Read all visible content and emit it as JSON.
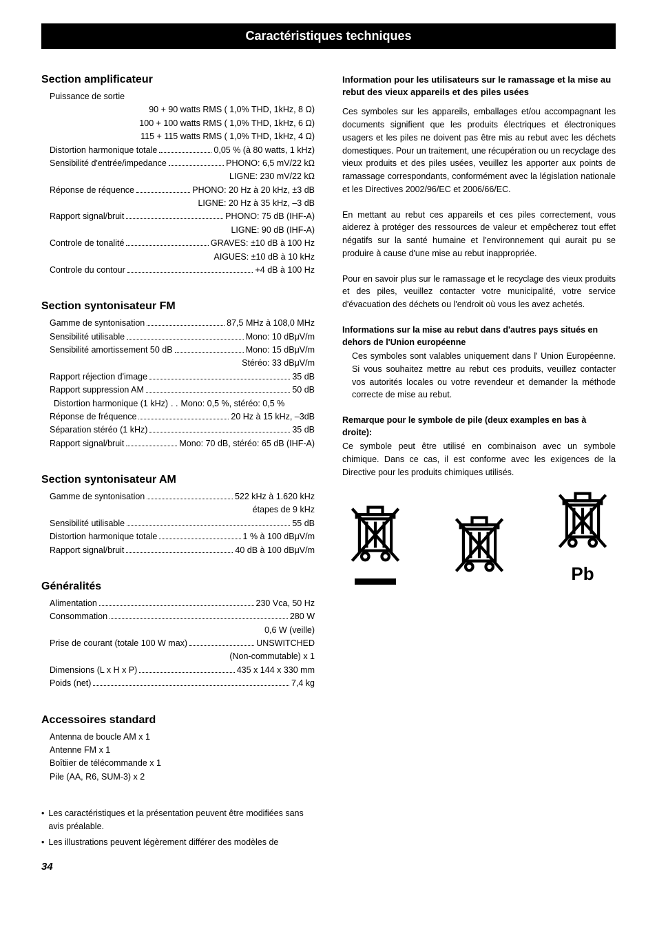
{
  "title": "Caractéristiques techniques",
  "page_number": "34",
  "colors": {
    "bg": "#ffffff",
    "bar": "#000000",
    "text": "#000000"
  },
  "sections": {
    "amp": {
      "head": "Section amplificateur",
      "rows": [
        {
          "label": "Puissance de sortie",
          "value": ""
        },
        {
          "right": "90 + 90 watts RMS ( 1,0% THD, 1kHz, 8 Ω)"
        },
        {
          "right": "100 + 100 watts RMS ( 1,0% THD, 1kHz, 6 Ω)"
        },
        {
          "right": "115 + 115 watts RMS ( 1,0% THD, 1kHz, 4 Ω)"
        },
        {
          "label": "Distortion harmonique totale",
          "value": "0,05 % (à 80 watts, 1 kHz)"
        },
        {
          "label": "Sensibilité d'entrée/impedance",
          "value": "PHONO: 6,5 mV/22 kΩ"
        },
        {
          "right": "LIGNE: 230 mV/22 kΩ"
        },
        {
          "label": "Réponse de réquence",
          "value": "PHONO: 20 Hz à 20 kHz, ±3 dB"
        },
        {
          "right": "LIGNE: 20 Hz à 35 kHz, –3 dB"
        },
        {
          "label": "Rapport signal/bruit",
          "value": "PHONO: 75 dB (IHF-A)"
        },
        {
          "right": "LIGNE: 90 dB (IHF-A)"
        },
        {
          "label": "Controle de tonalité",
          "value": "GRAVES: ±10 dB à 100 Hz"
        },
        {
          "right": "AIGUES: ±10 dB à 10 kHz"
        },
        {
          "label": "Controle du contour",
          "value": "+4 dB à 100 Hz"
        }
      ]
    },
    "fm": {
      "head": "Section syntonisateur FM",
      "rows": [
        {
          "label": "Gamme de syntonisation",
          "value": "87,5 MHz à 108,0 MHz"
        },
        {
          "label": "Sensibilité utilisable",
          "value": "Mono: 10 dBμV/m"
        },
        {
          "label": "Sensibilité amortissement 50 dB",
          "value": "Mono: 15 dBμV/m"
        },
        {
          "right": "Stéréo: 33 dBμV/m"
        },
        {
          "label": "Rapport réjection d'image",
          "value": "35 dB"
        },
        {
          "label": "Rapport suppression AM",
          "value": "50 dB"
        },
        {
          "label": "Distortion harmonique (1 kHz)",
          "value": "Mono: 0,5 %, stéréo: 0,5 %",
          "nodots": true
        },
        {
          "label": "Réponse de fréquence",
          "value": "20 Hz à 15 kHz, –3dB"
        },
        {
          "label": "Séparation stéréo (1 kHz)",
          "value": "35 dB"
        },
        {
          "label": "Rapport signal/bruit",
          "value": "Mono: 70 dB, stéréo: 65 dB (IHF-A)"
        }
      ]
    },
    "am": {
      "head": "Section syntonisateur AM",
      "rows": [
        {
          "label": "Gamme de syntonisation",
          "value": "522 kHz à 1.620 kHz"
        },
        {
          "right": "étapes de 9 kHz"
        },
        {
          "label": "Sensibilité utilisable",
          "value": "55 dB"
        },
        {
          "label": "Distortion harmonique totale",
          "value": "1 % à 100 dBμV/m"
        },
        {
          "label": "Rapport signal/bruit",
          "value": "40 dB à 100 dBμV/m"
        }
      ]
    },
    "gen": {
      "head": "Généralités",
      "rows": [
        {
          "label": "Alimentation",
          "value": "230 Vca, 50 Hz"
        },
        {
          "label": "Consommation",
          "value": "280 W"
        },
        {
          "right": "0,6 W (veille)"
        },
        {
          "label": "Prise de courant (totale 100 W max)",
          "value": "UNSWITCHED"
        },
        {
          "right": "(Non-commutable) x 1"
        },
        {
          "label": "Dimensions (L x H x P)",
          "value": "435 x 144 x 330 mm"
        },
        {
          "label": "Poids (net)",
          "value": "7,4 kg"
        }
      ]
    },
    "acc": {
      "head": "Accessoires standard",
      "lines": [
        "Antenna de boucle AM x 1",
        "Antenne FM x 1",
        "Boîtiier de télécommande x 1",
        "Pile (AA, R6, SUM-3) x 2"
      ]
    },
    "notes": [
      "Les caractéristiques et la présentation peuvent être modifiées sans avis préalable.",
      "Les illustrations peuvent légèrement différer des modèles de"
    ]
  },
  "info": {
    "head": "Information pour les utilisateurs sur le ramassage et la mise au rebut des vieux appareils et des piles usées",
    "p1": "Ces symboles sur les appareils, emballages et/ou accompagnant les documents signifient que les produits électriques et électroniques usagers et les piles ne doivent pas être mis au rebut avec les déchets domestiques. Pour un traitement, une récupération ou un recyclage des vieux produits et des piles usées, veuillez les apporter aux points de ramassage correspondants, conformément avec la législation nationale et les Directives 2002/96/EC et 2006/66/EC.",
    "p2": "En mettant au rebut ces appareils et ces piles correctement, vous aiderez à protéger des ressources de valeur et empêcherez tout effet négatifs sur la santé humaine et l'environnement qui aurait pu se produire à cause d'une mise au rebut inappropriée.",
    "p3": "Pour en savoir plus sur le ramassage et le recyclage des vieux produits et des piles, veuillez contacter votre municipalité, votre service d'évacuation des déchets ou l'endroit où vous les avez achetés.",
    "sub1": "Informations sur la mise au rebut dans d'autres pays situés en dehors de l'Union européenne",
    "p4": "Ces symboles sont valables uniquement dans l' Union Européenne. Si vous souhaitez mettre au rebut ces produits, veuillez contacter vos autorités locales ou votre revendeur et demander la méthode correcte de mise au rebut.",
    "sub2": "Remarque pour le symbole de pile (deux examples en bas à droite):",
    "p5": "Ce symbole peut être utilisé en combinaison avec un symbole chimique. Dans ce cas, il est conforme avec les exigences de la Directive pour les produits chimiques utilisés.",
    "pb": "Pb"
  }
}
